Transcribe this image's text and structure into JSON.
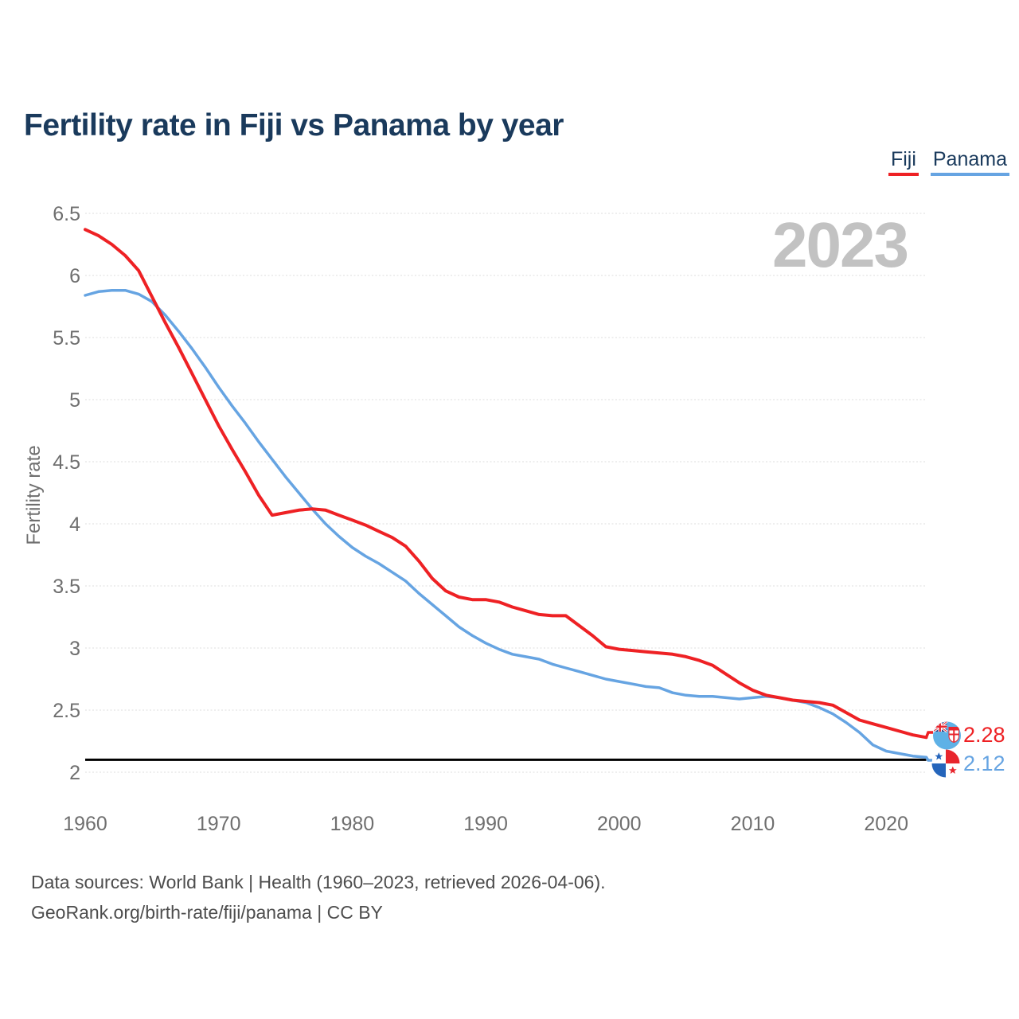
{
  "title": "Fertility rate in Fiji vs Panama by year",
  "watermark": "2023",
  "legend": {
    "items": [
      {
        "label": "Fiji",
        "color": "#ee2124"
      },
      {
        "label": "Panama",
        "color": "#66a4e2"
      }
    ]
  },
  "y_axis": {
    "title": "Fertility rate"
  },
  "end_labels": {
    "fiji": {
      "value": "2.28"
    },
    "panama": {
      "value": "2.12"
    }
  },
  "footer": {
    "line1": "Data sources: World Bank | Health (1960–2023, retrieved 2026-04-06).",
    "line2": "GeoRank.org/birth-rate/fiji/panama | CC BY"
  },
  "chart_data": {
    "type": "line",
    "title": "Fertility rate in Fiji vs Panama by year",
    "xlabel": "",
    "ylabel": "Fertility rate",
    "x": [
      1960,
      1961,
      1962,
      1963,
      1964,
      1965,
      1966,
      1967,
      1968,
      1969,
      1970,
      1971,
      1972,
      1973,
      1974,
      1975,
      1976,
      1977,
      1978,
      1979,
      1980,
      1981,
      1982,
      1983,
      1984,
      1985,
      1986,
      1987,
      1988,
      1989,
      1990,
      1991,
      1992,
      1993,
      1994,
      1995,
      1996,
      1997,
      1998,
      1999,
      2000,
      2001,
      2002,
      2003,
      2004,
      2005,
      2006,
      2007,
      2008,
      2009,
      2010,
      2011,
      2012,
      2013,
      2014,
      2015,
      2016,
      2017,
      2018,
      2019,
      2020,
      2021,
      2022,
      2023
    ],
    "series": [
      {
        "name": "Fiji",
        "color": "#ee2124",
        "values": [
          6.37,
          6.32,
          6.25,
          6.16,
          6.04,
          5.83,
          5.62,
          5.42,
          5.21,
          5.0,
          4.79,
          4.6,
          4.42,
          4.23,
          4.07,
          4.09,
          4.11,
          4.12,
          4.11,
          4.07,
          4.03,
          3.99,
          3.94,
          3.89,
          3.82,
          3.7,
          3.56,
          3.46,
          3.41,
          3.39,
          3.39,
          3.37,
          3.33,
          3.3,
          3.27,
          3.26,
          3.26,
          3.18,
          3.1,
          3.01,
          2.99,
          2.98,
          2.97,
          2.96,
          2.95,
          2.93,
          2.9,
          2.86,
          2.79,
          2.72,
          2.66,
          2.62,
          2.6,
          2.58,
          2.57,
          2.56,
          2.54,
          2.48,
          2.42,
          2.39,
          2.36,
          2.33,
          2.3,
          2.28
        ]
      },
      {
        "name": "Panama",
        "color": "#66a4e2",
        "values": [
          5.84,
          5.87,
          5.88,
          5.88,
          5.85,
          5.79,
          5.68,
          5.55,
          5.41,
          5.26,
          5.1,
          4.95,
          4.81,
          4.66,
          4.52,
          4.38,
          4.25,
          4.12,
          4.0,
          3.9,
          3.81,
          3.74,
          3.68,
          3.61,
          3.54,
          3.44,
          3.35,
          3.26,
          3.17,
          3.1,
          3.04,
          2.99,
          2.95,
          2.93,
          2.91,
          2.87,
          2.84,
          2.81,
          2.78,
          2.75,
          2.73,
          2.71,
          2.69,
          2.68,
          2.64,
          2.62,
          2.61,
          2.61,
          2.6,
          2.59,
          2.6,
          2.61,
          2.6,
          2.58,
          2.56,
          2.52,
          2.47,
          2.4,
          2.32,
          2.22,
          2.17,
          2.15,
          2.13,
          2.12
        ]
      }
    ],
    "reference_line": {
      "value": 2.1,
      "color": "#000000"
    },
    "xticks": [
      1960,
      1970,
      1980,
      1990,
      2000,
      2010,
      2020
    ],
    "yticks": [
      2,
      2.5,
      3,
      3.5,
      4,
      4.5,
      5,
      5.5,
      6,
      6.5
    ],
    "xlim": [
      1960,
      2023
    ],
    "ylim": [
      2,
      6.5
    ],
    "grid": "horizontal",
    "legend_position": "top-right",
    "watermark": "2023"
  }
}
